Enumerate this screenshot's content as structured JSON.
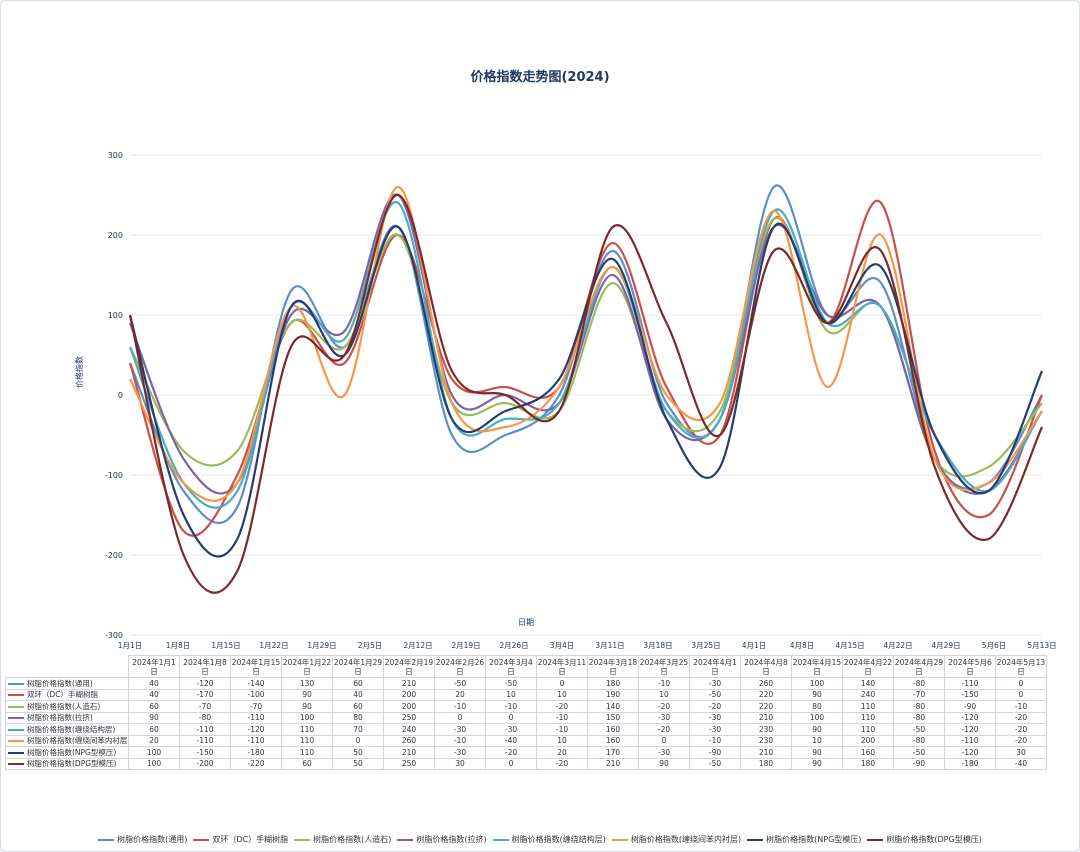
{
  "chart_data": {
    "type": "line",
    "title": "价格指数走势图(2024)",
    "xlabel": "日期",
    "ylabel": "价格指数",
    "ylim": [
      -300,
      300
    ],
    "yticks": [
      -300,
      -200,
      -100,
      0,
      100,
      200,
      300
    ],
    "grid": true,
    "legend_position": "bottom",
    "x_axis_labels": [
      "1月1日",
      "1月8日",
      "1月15日",
      "1月22日",
      "1月29日",
      "2月5日",
      "2月12日",
      "2月19日",
      "2月26日",
      "3月4日",
      "3月11日",
      "3月18日",
      "3月25日",
      "4月1日",
      "4月8日",
      "4月15日",
      "4月22日",
      "4月29日",
      "5月6日",
      "5月13日"
    ],
    "categories": [
      "2024年1月1日",
      "2024年1月8日",
      "2024年1月15日",
      "2024年1月22日",
      "2024年1月29日",
      "2024年2月19日",
      "2024年2月26日",
      "2024年3月4日",
      "2024年3月11日",
      "2024年3月18日",
      "2024年3月25日",
      "2024年4月1日",
      "2024年4月8日",
      "2024年4月15日",
      "2024年4月22日",
      "2024年4月29日",
      "2024年5月6日",
      "2024年5月13日"
    ],
    "series": [
      {
        "name": "树脂价格指数(通用)",
        "color": "#5b8fc9",
        "values": [
          40,
          -120,
          -140,
          130,
          60,
          210,
          -50,
          -50,
          0,
          180,
          -10,
          -30,
          260,
          100,
          140,
          -80,
          -110,
          0
        ]
      },
      {
        "name": "双环（DC）手糊树脂",
        "color": "#c8504b",
        "values": [
          40,
          -170,
          -100,
          90,
          40,
          200,
          20,
          10,
          10,
          190,
          10,
          -50,
          220,
          90,
          240,
          -70,
          -150,
          0
        ]
      },
      {
        "name": "树脂价格指数(人造石)",
        "color": "#9bbb59",
        "values": [
          60,
          -70,
          -70,
          90,
          60,
          200,
          -10,
          -10,
          -20,
          140,
          -20,
          -20,
          220,
          80,
          110,
          -80,
          -90,
          -10
        ]
      },
      {
        "name": "树脂价格指数(拉挤)",
        "color": "#8064a2",
        "values": [
          90,
          -80,
          -110,
          100,
          80,
          250,
          0,
          0,
          -10,
          150,
          -30,
          -30,
          210,
          100,
          110,
          -80,
          -120,
          -20
        ]
      },
      {
        "name": "树脂价格指数(缠绕结构层)",
        "color": "#4bacc6",
        "values": [
          60,
          -110,
          -120,
          110,
          70,
          240,
          -30,
          -30,
          -10,
          160,
          -20,
          -30,
          230,
          90,
          110,
          -50,
          -120,
          -20
        ]
      },
      {
        "name": "树脂价格指数(缠绕间苯内衬层)",
        "color": "#f79646",
        "values": [
          20,
          -110,
          -110,
          110,
          0,
          260,
          -10,
          -40,
          10,
          160,
          0,
          -10,
          230,
          10,
          200,
          -80,
          -110,
          -20
        ]
      },
      {
        "name": "树脂价格指数(NPG型模压)",
        "color": "#253d6e",
        "values": [
          100,
          -150,
          -180,
          110,
          50,
          210,
          -30,
          -20,
          20,
          170,
          -30,
          -90,
          210,
          90,
          160,
          -50,
          -120,
          30
        ]
      },
      {
        "name": "树脂价格指数(DPG型模压)",
        "color": "#7b2a2a",
        "values": [
          100,
          -200,
          -220,
          60,
          50,
          250,
          30,
          0,
          -20,
          210,
          90,
          -50,
          180,
          90,
          180,
          -90,
          -180,
          -40
        ]
      }
    ]
  }
}
